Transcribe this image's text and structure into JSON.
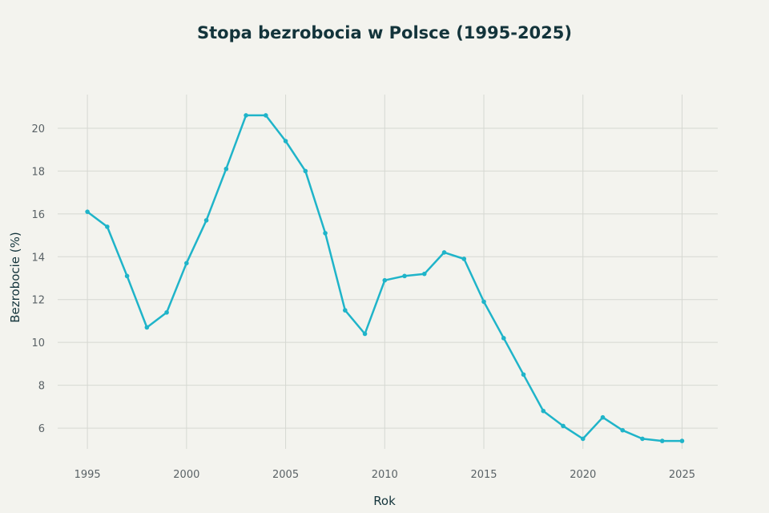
{
  "chart_data": {
    "type": "line",
    "title": "Stopa bezrobocia w Polsce (1995-2025)",
    "xlabel": "Rok",
    "ylabel": "Bezrobocie (%)",
    "x": [
      1995,
      1996,
      1997,
      1998,
      1999,
      2000,
      2001,
      2002,
      2003,
      2004,
      2005,
      2006,
      2007,
      2008,
      2009,
      2010,
      2011,
      2012,
      2013,
      2014,
      2015,
      2016,
      2017,
      2018,
      2019,
      2020,
      2021,
      2022,
      2023,
      2024,
      2025
    ],
    "values": [
      16.1,
      15.4,
      13.1,
      10.7,
      11.4,
      13.7,
      15.7,
      18.1,
      20.6,
      20.6,
      19.4,
      18.0,
      15.1,
      11.5,
      10.4,
      12.9,
      13.1,
      13.2,
      14.2,
      13.9,
      11.9,
      10.2,
      8.5,
      6.8,
      6.1,
      5.5,
      6.5,
      5.9,
      5.5,
      5.4,
      5.4
    ],
    "xticks": [
      "1995",
      "2000",
      "2005",
      "2010",
      "2015",
      "2020",
      "2025"
    ],
    "yticks": [
      "6",
      "8",
      "10",
      "12",
      "14",
      "16",
      "18",
      "20"
    ],
    "xlim": [
      1993.5,
      2026.8
    ],
    "ylim": [
      5.03,
      21.57
    ],
    "grid": true,
    "legend": "none",
    "colors": {
      "line": "#1fb4c9",
      "background": "#f3f3ee",
      "grid": "#d6d8d2"
    }
  }
}
